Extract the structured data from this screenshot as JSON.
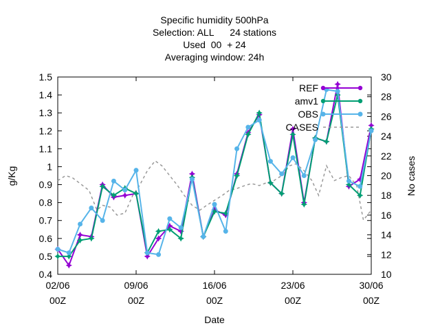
{
  "chart_data": {
    "type": "line",
    "title_lines": [
      "Specific humidity 500hPa",
      "Selection: ALL      24 stations",
      "Used  00  + 24",
      "Averaging window: 24h"
    ],
    "xlabel": "Date",
    "ylabel": "g/Kg",
    "y2label": "No cases",
    "xlim": [
      0,
      28
    ],
    "ylim": [
      0.4,
      1.5
    ],
    "y2lim": [
      10,
      30
    ],
    "x_ticks": [
      {
        "x": 0,
        "label": [
          "02/06",
          "00Z"
        ]
      },
      {
        "x": 7,
        "label": [
          "09/06",
          "00Z"
        ]
      },
      {
        "x": 14,
        "label": [
          "16/06",
          "00Z"
        ]
      },
      {
        "x": 21,
        "label": [
          "23/06",
          "00Z"
        ]
      },
      {
        "x": 28,
        "label": [
          "30/06",
          "00Z"
        ]
      }
    ],
    "y_ticks": [
      "0.4",
      "0.5",
      "0.6",
      "0.7",
      "0.8",
      "0.9",
      "1",
      "1.1",
      "1.2",
      "1.3",
      "1.4",
      "1.5"
    ],
    "y2_ticks": [
      "10",
      "12",
      "14",
      "16",
      "18",
      "20",
      "22",
      "24",
      "26",
      "28",
      "30"
    ],
    "legend_position": "top-right",
    "series": [
      {
        "name": "REF",
        "color": "#9400d3",
        "marker": "star",
        "axis": "y",
        "x": [
          0,
          1,
          2,
          3,
          4,
          5,
          6,
          7,
          8,
          9,
          10,
          11,
          12,
          13,
          14,
          15,
          16,
          17,
          18,
          19,
          20,
          21,
          22,
          23,
          24,
          25,
          26,
          27,
          28
        ],
        "values": [
          0.54,
          0.45,
          0.62,
          0.61,
          0.9,
          0.83,
          0.84,
          0.85,
          0.5,
          0.6,
          0.67,
          0.64,
          0.96,
          0.61,
          0.76,
          0.73,
          0.96,
          1.19,
          1.29,
          0.91,
          0.85,
          1.21,
          0.8,
          1.16,
          1.14,
          1.46,
          0.89,
          0.93,
          1.23
        ]
      },
      {
        "name": "amv1",
        "color": "#009e73",
        "marker": "star",
        "axis": "y",
        "x": [
          0,
          1,
          2,
          3,
          4,
          5,
          6,
          7,
          8,
          9,
          10,
          11,
          12,
          13,
          14,
          15,
          16,
          17,
          18,
          19,
          20,
          21,
          22,
          23,
          24,
          25,
          26,
          27,
          28
        ],
        "values": [
          0.5,
          0.5,
          0.59,
          0.6,
          0.89,
          0.84,
          0.88,
          0.85,
          0.52,
          0.64,
          0.65,
          0.6,
          0.94,
          0.61,
          0.75,
          0.74,
          0.95,
          1.18,
          1.3,
          0.91,
          0.85,
          1.18,
          0.79,
          1.16,
          1.14,
          1.4,
          0.9,
          0.84,
          1.21
        ]
      },
      {
        "name": "OBS",
        "color": "#56b4e9",
        "marker": "circle",
        "axis": "y",
        "x": [
          0,
          1,
          2,
          3,
          4,
          5,
          6,
          7,
          8,
          9,
          10,
          11,
          12,
          13,
          14,
          15,
          16,
          17,
          18,
          19,
          20,
          21,
          22,
          23,
          24,
          25,
          26,
          27,
          28
        ],
        "values": [
          0.54,
          0.52,
          0.68,
          0.77,
          0.7,
          0.92,
          0.87,
          0.98,
          0.52,
          0.51,
          0.71,
          0.66,
          0.93,
          0.61,
          0.79,
          0.64,
          1.1,
          1.22,
          1.26,
          1.03,
          0.96,
          1.05,
          0.95,
          1.15,
          1.43,
          1.42,
          0.92,
          0.89,
          1.2
        ]
      },
      {
        "name": "CASES",
        "color": "#999999",
        "style": "dashed",
        "axis": "y2",
        "x": [
          0,
          0.7,
          1.3,
          2,
          2.8,
          3.5,
          4,
          4.7,
          5.3,
          6,
          6.7,
          7.3,
          8,
          8.7,
          9.3,
          10,
          10.7,
          11.3,
          12,
          12.7,
          13.3,
          14,
          14.7,
          15.3,
          16,
          16.7,
          17.3,
          18,
          18.7,
          19.3,
          20,
          20.7,
          21.3,
          22,
          22.7,
          23.3,
          24,
          24.7,
          25.3,
          26,
          26.7,
          27.3,
          28
        ],
        "values": [
          19.5,
          20,
          19.8,
          19.2,
          18.5,
          16.5,
          17,
          16.8,
          16,
          16.2,
          18,
          19,
          20.5,
          21.5,
          21,
          20,
          19,
          18,
          17,
          16.5,
          17,
          17.5,
          18,
          18.5,
          18.7,
          19,
          19.2,
          19,
          19.3,
          19.5,
          20,
          21,
          21.2,
          20.5,
          19.5,
          18,
          21,
          19.5,
          19.8,
          20,
          19,
          15.5,
          16.5
        ]
      }
    ]
  }
}
